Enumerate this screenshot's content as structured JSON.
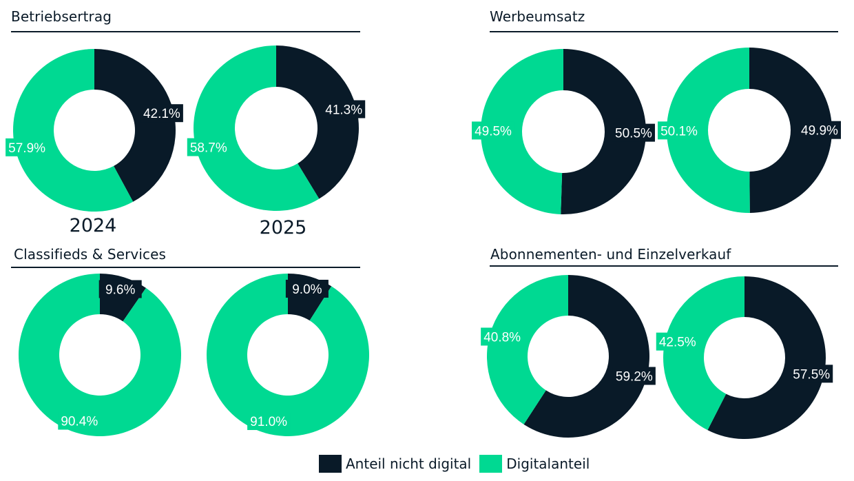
{
  "colors": {
    "nicht_digital": "#091a28",
    "digital": "#00d992"
  },
  "legend": {
    "nicht_digital": "Anteil nicht digital",
    "digital": "Digitalanteil"
  },
  "chart_data": [
    {
      "type": "pie",
      "title": "Betriebsertrag",
      "series_labels": [
        "2024",
        "2025"
      ],
      "categories": [
        "Anteil nicht digital",
        "Digitalanteil"
      ],
      "series": [
        {
          "name": "2024",
          "values": [
            42.1,
            57.9
          ],
          "labels": [
            "42.1%",
            "57.9%"
          ]
        },
        {
          "name": "2025",
          "values": [
            41.3,
            58.7
          ],
          "labels": [
            "41.3%",
            "58.7%"
          ]
        }
      ]
    },
    {
      "type": "pie",
      "title": "Werbeumsatz",
      "categories": [
        "Anteil nicht digital",
        "Digitalanteil"
      ],
      "series": [
        {
          "values": [
            50.5,
            49.5
          ],
          "labels": [
            "50.5%",
            "49.5%"
          ]
        },
        {
          "values": [
            49.9,
            50.1
          ],
          "labels": [
            "49.9%",
            "50.1%"
          ]
        }
      ]
    },
    {
      "type": "pie",
      "title": "Classifieds & Services",
      "categories": [
        "Anteil nicht digital",
        "Digitalanteil"
      ],
      "series": [
        {
          "values": [
            9.6,
            90.4
          ],
          "labels": [
            "9.6%",
            "90.4%"
          ]
        },
        {
          "values": [
            9.0,
            91.0
          ],
          "labels": [
            "9.0%",
            "91.0%"
          ]
        }
      ]
    },
    {
      "type": "pie",
      "title": "Abonnementen- und Einzelverkauf",
      "categories": [
        "Anteil nicht digital",
        "Digitalanteil"
      ],
      "series": [
        {
          "values": [
            59.2,
            40.8
          ],
          "labels": [
            "59.2%",
            "40.8%"
          ]
        },
        {
          "values": [
            57.5,
            42.5
          ],
          "labels": [
            "57.5%",
            "42.5%"
          ]
        }
      ]
    }
  ]
}
